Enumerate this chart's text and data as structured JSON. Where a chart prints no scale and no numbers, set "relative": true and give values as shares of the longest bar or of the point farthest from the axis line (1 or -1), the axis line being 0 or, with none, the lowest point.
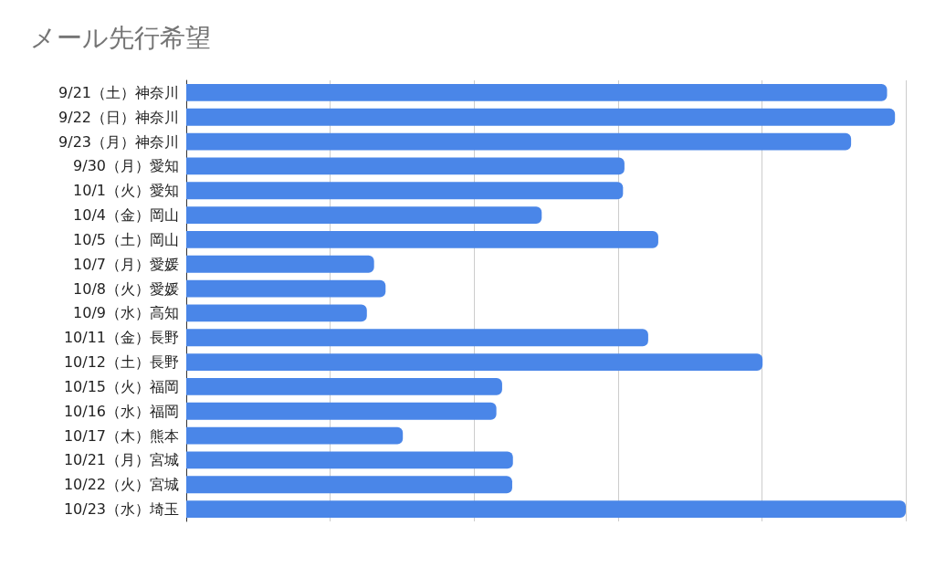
{
  "chart_data": {
    "type": "bar",
    "title": "メール先行希望",
    "orientation": "horizontal",
    "relative": true,
    "grid": "x",
    "categories": [
      "9/21（土）神奈川",
      "9/22（日）神奈川",
      "9/23（月）神奈川",
      "9/30（月）愛知",
      "10/1（火）愛知",
      "10/4（金）岡山",
      "10/5（土）岡山",
      "10/7（月）愛媛",
      "10/8（火）愛媛",
      "10/9（水）高知",
      "10/11（金）長野",
      "10/12（土）長野",
      "10/15（火）福岡",
      "10/16（水）福岡",
      "10/17（木）熊本",
      "10/21（月）宮城",
      "10/22（火）宮城",
      "10/23（水）埼玉"
    ],
    "values": [
      0.974,
      0.985,
      0.924,
      0.609,
      0.607,
      0.494,
      0.656,
      0.261,
      0.277,
      0.251,
      0.642,
      0.801,
      0.439,
      0.431,
      0.301,
      0.454,
      0.453,
      1
    ],
    "color": "#4a86e8"
  }
}
